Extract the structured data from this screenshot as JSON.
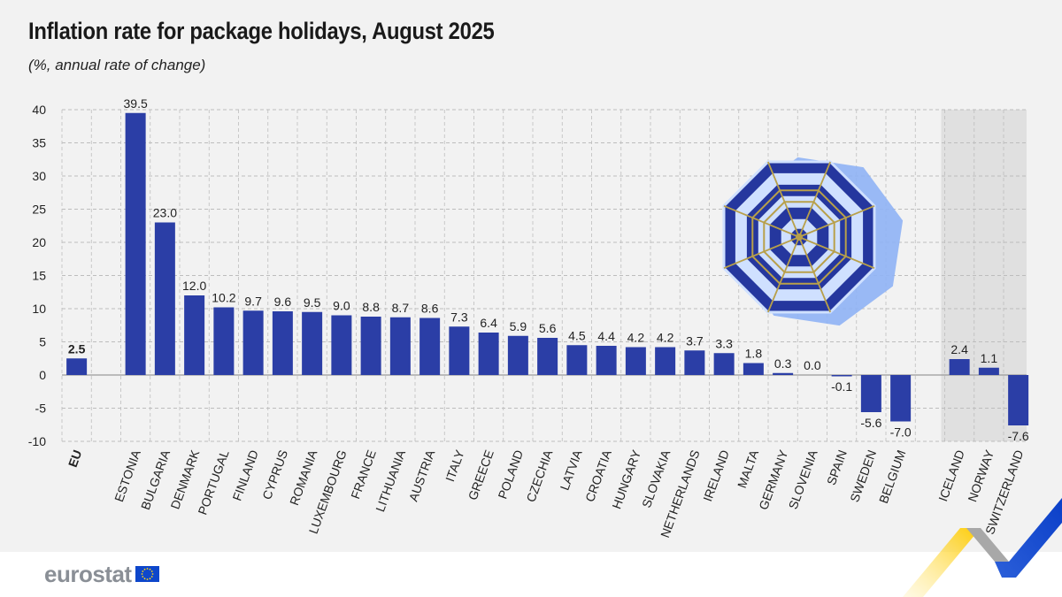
{
  "header": {
    "title": "Inflation rate for package holidays, August 2025",
    "subtitle": "(%, annual rate of change)"
  },
  "brand": {
    "logo_text": "eurostat"
  },
  "colors": {
    "bar": "#2b3ea6",
    "grid": "#bdbdbd",
    "non_eu_band": "#e0e0e0",
    "background": "#f2f2f2"
  },
  "chart_data": {
    "type": "bar",
    "title": "Inflation rate for package holidays, August 2025",
    "subtitle": "(%, annual rate of change)",
    "ylim": [
      -10,
      40
    ],
    "yticks": [
      40,
      35,
      30,
      25,
      20,
      15,
      10,
      5,
      0,
      -5,
      -10
    ],
    "grid": true,
    "categories": [
      "EU",
      "ESTONIA",
      "BULGARIA",
      "DENMARK",
      "PORTUGAL",
      "FINLAND",
      "CYPRUS",
      "ROMANIA",
      "LUXEMBOURG",
      "FRANCE",
      "LITHUANIA",
      "AUSTRIA",
      "ITALY",
      "GREECE",
      "POLAND",
      "CZECHIA",
      "LATVIA",
      "CROATIA",
      "HUNGARY",
      "SLOVAKIA",
      "NETHERLANDS",
      "IRELAND",
      "MALTA",
      "GERMANY",
      "SLOVENIA",
      "SPAIN",
      "SWEDEN",
      "BELGIUM",
      "ICELAND",
      "NORWAY",
      "SWITZERLAND"
    ],
    "values": [
      2.5,
      39.5,
      23.0,
      12.0,
      10.2,
      9.7,
      9.6,
      9.5,
      9.0,
      8.8,
      8.7,
      8.6,
      7.3,
      6.4,
      5.9,
      5.6,
      4.5,
      4.4,
      4.2,
      4.2,
      3.7,
      3.3,
      1.8,
      0.3,
      0.0,
      -0.1,
      -5.6,
      -7.0,
      2.4,
      1.1,
      -7.6
    ],
    "value_labels": [
      "2.5",
      "39.5",
      "23.0",
      "12.0",
      "10.2",
      "9.7",
      "9.6",
      "9.5",
      "9.0",
      "8.8",
      "8.7",
      "8.6",
      "7.3",
      "6.4",
      "5.9",
      "5.6",
      "4.5",
      "4.4",
      "4.2",
      "4.2",
      "3.7",
      "3.3",
      "1.8",
      "0.3",
      "0.0",
      "-0.1",
      "-5.6",
      "-7.0",
      "2.4",
      "1.1",
      "-7.6"
    ],
    "groups": {
      "eu_aggregate": [
        "EU"
      ],
      "non_eu": [
        "ICELAND",
        "NORWAY",
        "SWITZERLAND"
      ]
    }
  }
}
